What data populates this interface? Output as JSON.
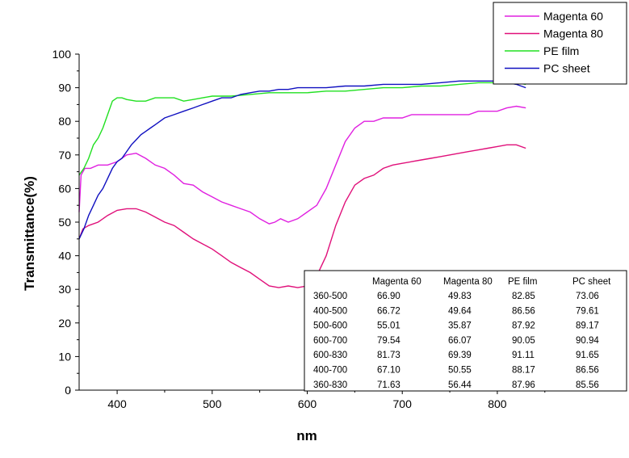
{
  "chart_data": {
    "type": "line",
    "xlabel": "nm",
    "ylabel": "Transmittance(%)",
    "xlim": [
      360,
      840
    ],
    "ylim": [
      0,
      100
    ],
    "x_ticks": [
      400,
      500,
      600,
      700,
      800
    ],
    "y_ticks": [
      0,
      10,
      20,
      30,
      40,
      50,
      60,
      70,
      80,
      90,
      100
    ],
    "grid": false,
    "legend_position": "top-right",
    "series": [
      {
        "name": "Magenta 60",
        "color": "#e020e0",
        "points": [
          [
            360,
            53
          ],
          [
            362,
            64
          ],
          [
            366,
            66
          ],
          [
            372,
            66
          ],
          [
            380,
            67
          ],
          [
            390,
            67
          ],
          [
            400,
            68
          ],
          [
            410,
            70
          ],
          [
            420,
            70.5
          ],
          [
            430,
            69
          ],
          [
            440,
            67
          ],
          [
            450,
            66
          ],
          [
            460,
            64
          ],
          [
            470,
            61.5
          ],
          [
            480,
            61
          ],
          [
            490,
            59
          ],
          [
            500,
            57.5
          ],
          [
            510,
            56
          ],
          [
            520,
            55
          ],
          [
            530,
            54
          ],
          [
            540,
            53
          ],
          [
            550,
            51
          ],
          [
            560,
            49.5
          ],
          [
            566,
            50
          ],
          [
            572,
            51
          ],
          [
            580,
            50
          ],
          [
            590,
            51
          ],
          [
            600,
            53
          ],
          [
            610,
            55
          ],
          [
            620,
            60
          ],
          [
            630,
            67
          ],
          [
            640,
            74
          ],
          [
            650,
            78
          ],
          [
            660,
            80
          ],
          [
            670,
            80
          ],
          [
            680,
            81
          ],
          [
            690,
            81
          ],
          [
            700,
            81
          ],
          [
            710,
            82
          ],
          [
            720,
            82
          ],
          [
            730,
            82
          ],
          [
            740,
            82
          ],
          [
            750,
            82
          ],
          [
            760,
            82
          ],
          [
            770,
            82
          ],
          [
            780,
            83
          ],
          [
            790,
            83
          ],
          [
            800,
            83
          ],
          [
            810,
            84
          ],
          [
            820,
            84.5
          ],
          [
            830,
            84
          ]
        ]
      },
      {
        "name": "Magenta 80",
        "color": "#e0107a",
        "points": [
          [
            360,
            45
          ],
          [
            364,
            48
          ],
          [
            370,
            49
          ],
          [
            380,
            50
          ],
          [
            390,
            52
          ],
          [
            400,
            53.5
          ],
          [
            410,
            54
          ],
          [
            420,
            54
          ],
          [
            430,
            53
          ],
          [
            440,
            51.5
          ],
          [
            450,
            50
          ],
          [
            460,
            49
          ],
          [
            470,
            47
          ],
          [
            480,
            45
          ],
          [
            490,
            43.5
          ],
          [
            500,
            42
          ],
          [
            510,
            40
          ],
          [
            520,
            38
          ],
          [
            530,
            36.5
          ],
          [
            540,
            35
          ],
          [
            550,
            33
          ],
          [
            560,
            31
          ],
          [
            570,
            30.5
          ],
          [
            580,
            31
          ],
          [
            590,
            30.5
          ],
          [
            600,
            31
          ],
          [
            610,
            34
          ],
          [
            620,
            40
          ],
          [
            630,
            49
          ],
          [
            640,
            56
          ],
          [
            650,
            61
          ],
          [
            660,
            63
          ],
          [
            670,
            64
          ],
          [
            680,
            66
          ],
          [
            690,
            67
          ],
          [
            700,
            67.5
          ],
          [
            710,
            68
          ],
          [
            720,
            68.5
          ],
          [
            730,
            69
          ],
          [
            740,
            69.5
          ],
          [
            750,
            70
          ],
          [
            760,
            70.5
          ],
          [
            770,
            71
          ],
          [
            780,
            71.5
          ],
          [
            790,
            72
          ],
          [
            800,
            72.5
          ],
          [
            810,
            73
          ],
          [
            820,
            73
          ],
          [
            830,
            72
          ]
        ]
      },
      {
        "name": "PE film",
        "color": "#20e020",
        "points": [
          [
            360,
            64
          ],
          [
            365,
            66
          ],
          [
            370,
            69
          ],
          [
            375,
            73
          ],
          [
            380,
            75
          ],
          [
            385,
            78
          ],
          [
            390,
            82
          ],
          [
            395,
            86
          ],
          [
            400,
            87
          ],
          [
            405,
            87
          ],
          [
            410,
            86.5
          ],
          [
            420,
            86
          ],
          [
            430,
            86
          ],
          [
            440,
            87
          ],
          [
            450,
            87
          ],
          [
            460,
            87
          ],
          [
            470,
            86
          ],
          [
            480,
            86.5
          ],
          [
            490,
            87
          ],
          [
            500,
            87.5
          ],
          [
            520,
            87.5
          ],
          [
            540,
            88
          ],
          [
            560,
            88.5
          ],
          [
            580,
            88.5
          ],
          [
            600,
            88.5
          ],
          [
            620,
            89
          ],
          [
            640,
            89
          ],
          [
            660,
            89.5
          ],
          [
            680,
            90
          ],
          [
            700,
            90
          ],
          [
            720,
            90.5
          ],
          [
            740,
            90.5
          ],
          [
            760,
            91
          ],
          [
            780,
            91.5
          ],
          [
            800,
            91.5
          ],
          [
            820,
            91.5
          ],
          [
            830,
            91
          ]
        ]
      },
      {
        "name": "PC sheet",
        "color": "#1010c0",
        "points": [
          [
            360,
            45
          ],
          [
            365,
            48
          ],
          [
            370,
            52
          ],
          [
            375,
            55
          ],
          [
            380,
            58
          ],
          [
            385,
            60
          ],
          [
            390,
            63
          ],
          [
            395,
            66
          ],
          [
            400,
            68
          ],
          [
            405,
            69
          ],
          [
            410,
            71
          ],
          [
            415,
            73
          ],
          [
            420,
            74.5
          ],
          [
            425,
            76
          ],
          [
            430,
            77
          ],
          [
            435,
            78
          ],
          [
            440,
            79
          ],
          [
            445,
            80
          ],
          [
            450,
            81
          ],
          [
            460,
            82
          ],
          [
            470,
            83
          ],
          [
            480,
            84
          ],
          [
            490,
            85
          ],
          [
            500,
            86
          ],
          [
            510,
            87
          ],
          [
            520,
            87
          ],
          [
            530,
            88
          ],
          [
            540,
            88.5
          ],
          [
            550,
            89
          ],
          [
            560,
            89
          ],
          [
            570,
            89.5
          ],
          [
            580,
            89.5
          ],
          [
            590,
            90
          ],
          [
            600,
            90
          ],
          [
            620,
            90
          ],
          [
            640,
            90.5
          ],
          [
            660,
            90.5
          ],
          [
            680,
            91
          ],
          [
            700,
            91
          ],
          [
            720,
            91
          ],
          [
            740,
            91.5
          ],
          [
            760,
            92
          ],
          [
            780,
            92
          ],
          [
            800,
            92
          ],
          [
            820,
            91
          ],
          [
            830,
            90
          ]
        ]
      }
    ],
    "table": {
      "columns": [
        "",
        "Magenta 60",
        "Magenta 80",
        "PE film",
        "PC sheet"
      ],
      "rows": [
        [
          "360-500",
          "66.90",
          "49.83",
          "82.85",
          "73.06"
        ],
        [
          "400-500",
          "66.72",
          "49.64",
          "86.56",
          "79.61"
        ],
        [
          "500-600",
          "55.01",
          "35.87",
          "87.92",
          "89.17"
        ],
        [
          "600-700",
          "79.54",
          "66.07",
          "90.05",
          "90.94"
        ],
        [
          "600-830",
          "81.73",
          "69.39",
          "91.11",
          "91.65"
        ],
        [
          "400-700",
          "67.10",
          "50.55",
          "88.17",
          "86.56"
        ],
        [
          "360-830",
          "71.63",
          "56.44",
          "87.96",
          "85.56"
        ]
      ]
    }
  }
}
